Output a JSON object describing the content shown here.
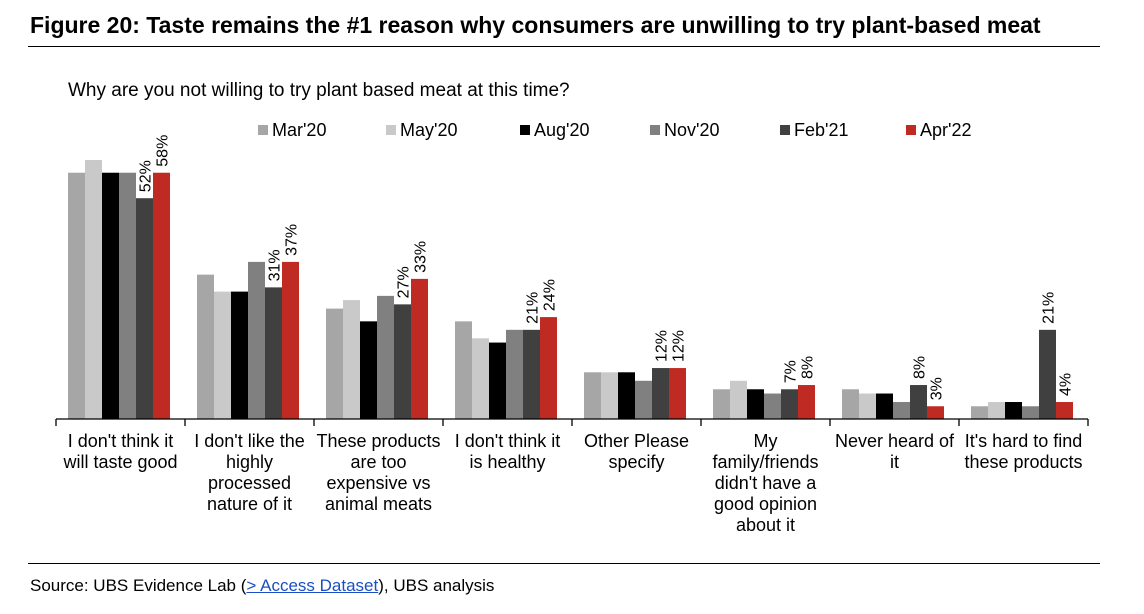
{
  "figure": {
    "title": "Figure 20: Taste remains the #1 reason why consumers are unwilling to try plant-based meat",
    "question": "Why are you not willing to try plant based meat at this time?"
  },
  "source": {
    "prefix": "Source: UBS Evidence Lab (",
    "link_text": "> Access Dataset",
    "suffix": "), UBS analysis"
  },
  "chart_data": {
    "type": "bar",
    "categories": [
      [
        "I don't think it",
        "will taste good"
      ],
      [
        "I don't like the",
        "highly",
        "processed",
        "nature of it"
      ],
      [
        "These products",
        "are too",
        "expensive vs",
        "animal meats"
      ],
      [
        "I don't think it",
        "is healthy"
      ],
      [
        "Other Please",
        "specify"
      ],
      [
        "My",
        "family/friends",
        "didn't have a",
        "good opinion",
        "about it"
      ],
      [
        "Never heard of",
        "it"
      ],
      [
        "It's hard to find",
        "these products"
      ]
    ],
    "series": [
      {
        "name": "Mar'20",
        "color": "#a6a6a6",
        "values": [
          58,
          34,
          26,
          23,
          11,
          7,
          7,
          3
        ]
      },
      {
        "name": "May'20",
        "color": "#c9c9c9",
        "values": [
          61,
          30,
          28,
          19,
          11,
          9,
          6,
          4
        ]
      },
      {
        "name": "Aug'20",
        "color": "#000000",
        "values": [
          58,
          30,
          23,
          18,
          11,
          7,
          6,
          4
        ]
      },
      {
        "name": "Nov'20",
        "color": "#808080",
        "values": [
          58,
          37,
          29,
          21,
          9,
          6,
          4,
          3
        ]
      },
      {
        "name": "Feb'21",
        "color": "#404040",
        "values": [
          52,
          31,
          27,
          21,
          12,
          7,
          8,
          21
        ]
      },
      {
        "name": "Apr'22",
        "color": "#bf2b23",
        "values": [
          58,
          37,
          33,
          24,
          12,
          8,
          3,
          4
        ]
      }
    ],
    "data_labels": [
      {
        "series": "Feb'21",
        "labels": [
          "52%",
          "31%",
          "27%",
          "21%",
          "12%",
          "7%",
          "8%",
          "21%"
        ]
      },
      {
        "series": "Apr'22",
        "labels": [
          "58%",
          "37%",
          "33%",
          "24%",
          "12%",
          "8%",
          "3%",
          "4%"
        ]
      }
    ],
    "ylim": [
      0,
      65
    ],
    "grid": false,
    "legend": "top"
  }
}
